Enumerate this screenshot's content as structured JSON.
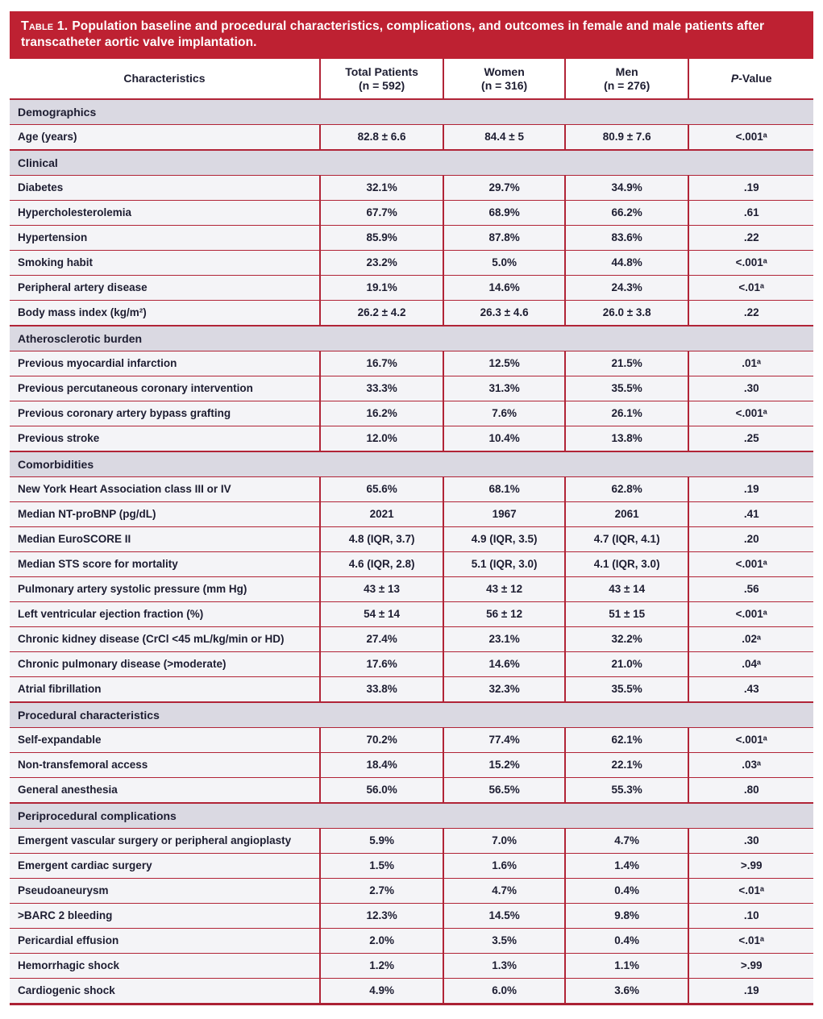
{
  "title": {
    "label": "Table 1.",
    "text": "Population baseline and procedural characteristics, complications, and outcomes in female and male patients after transcatheter aortic valve implantation."
  },
  "columns": [
    {
      "label": "Characteristics"
    },
    {
      "line1": "Total Patients",
      "line2": "(n = 592)"
    },
    {
      "line1": "Women",
      "line2": "(n = 316)"
    },
    {
      "line1": "Men",
      "line2": "(n = 276)"
    },
    {
      "line1": "P-Value",
      "line2": ""
    }
  ],
  "sections": [
    {
      "header": "Demographics",
      "rows": [
        {
          "label": "Age (years)",
          "values": [
            "82.8 ± 6.6",
            "84.4 ± 5",
            "80.9 ± 7.6",
            "<.001ᵃ"
          ]
        }
      ]
    },
    {
      "header": "Clinical",
      "rows": [
        {
          "label": "Diabetes",
          "values": [
            "32.1%",
            "29.7%",
            "34.9%",
            ".19"
          ]
        },
        {
          "label": "Hypercholesterolemia",
          "values": [
            "67.7%",
            "68.9%",
            "66.2%",
            ".61"
          ]
        },
        {
          "label": "Hypertension",
          "values": [
            "85.9%",
            "87.8%",
            "83.6%",
            ".22"
          ]
        },
        {
          "label": "Smoking habit",
          "values": [
            "23.2%",
            "5.0%",
            "44.8%",
            "<.001ᵃ"
          ]
        },
        {
          "label": "Peripheral artery disease",
          "values": [
            "19.1%",
            "14.6%",
            "24.3%",
            "<.01ᵃ"
          ]
        },
        {
          "label": "Body mass index (kg/m²)",
          "values": [
            "26.2 ± 4.2",
            "26.3 ± 4.6",
            "26.0 ± 3.8",
            ".22"
          ]
        }
      ]
    },
    {
      "header": "Atherosclerotic burden",
      "rows": [
        {
          "label": "Previous myocardial infarction",
          "values": [
            "16.7%",
            "12.5%",
            "21.5%",
            ".01ᵃ"
          ]
        },
        {
          "label": "Previous percutaneous coronary intervention",
          "values": [
            "33.3%",
            "31.3%",
            "35.5%",
            ".30"
          ]
        },
        {
          "label": "Previous coronary artery bypass grafting",
          "values": [
            "16.2%",
            "7.6%",
            "26.1%",
            "<.001ᵃ"
          ]
        },
        {
          "label": "Previous stroke",
          "values": [
            "12.0%",
            "10.4%",
            "13.8%",
            ".25"
          ]
        }
      ]
    },
    {
      "header": "Comorbidities",
      "rows": [
        {
          "label": "New York Heart Association class III or IV",
          "values": [
            "65.6%",
            "68.1%",
            "62.8%",
            ".19"
          ]
        },
        {
          "label": "Median NT-proBNP (pg/dL)",
          "values": [
            "2021",
            "1967",
            "2061",
            ".41"
          ]
        },
        {
          "label": "Median EuroSCORE II",
          "values": [
            "4.8 (IQR, 3.7)",
            "4.9 (IQR, 3.5)",
            "4.7 (IQR, 4.1)",
            ".20"
          ]
        },
        {
          "label": "Median STS score for mortality",
          "values": [
            "4.6 (IQR, 2.8)",
            "5.1 (IQR, 3.0)",
            "4.1 (IQR, 3.0)",
            "<.001ᵃ"
          ]
        },
        {
          "label": "Pulmonary artery systolic pressure (mm Hg)",
          "values": [
            "43 ± 13",
            "43 ± 12",
            "43 ± 14",
            ".56"
          ]
        },
        {
          "label": "Left ventricular ejection fraction (%)",
          "values": [
            "54 ± 14",
            "56 ± 12",
            "51 ± 15",
            "<.001ᵃ"
          ]
        },
        {
          "label": "Chronic kidney disease (CrCl <45 mL/kg/min or HD)",
          "values": [
            "27.4%",
            "23.1%",
            "32.2%",
            ".02ᵃ"
          ]
        },
        {
          "label": "Chronic pulmonary disease (>moderate)",
          "values": [
            "17.6%",
            "14.6%",
            "21.0%",
            ".04ᵃ"
          ]
        },
        {
          "label": "Atrial fibrillation",
          "values": [
            "33.8%",
            "32.3%",
            "35.5%",
            ".43"
          ]
        }
      ]
    },
    {
      "header": "Procedural characteristics",
      "rows": [
        {
          "label": "Self-expandable",
          "values": [
            "70.2%",
            "77.4%",
            "62.1%",
            "<.001ᵃ"
          ]
        },
        {
          "label": "Non-transfemoral access",
          "values": [
            "18.4%",
            "15.2%",
            "22.1%",
            ".03ᵃ"
          ]
        },
        {
          "label": "General anesthesia",
          "values": [
            "56.0%",
            "56.5%",
            "55.3%",
            ".80"
          ]
        }
      ]
    },
    {
      "header": "Periprocedural complications",
      "rows": [
        {
          "label": "Emergent vascular surgery or peripheral angioplasty",
          "values": [
            "5.9%",
            "7.0%",
            "4.7%",
            ".30"
          ]
        },
        {
          "label": "Emergent cardiac surgery",
          "values": [
            "1.5%",
            "1.6%",
            "1.4%",
            ">.99"
          ]
        },
        {
          "label": "Pseudoaneurysm",
          "values": [
            "2.7%",
            "4.7%",
            "0.4%",
            "<.01ᵃ"
          ]
        },
        {
          "label": ">BARC 2 bleeding",
          "values": [
            "12.3%",
            "14.5%",
            "9.8%",
            ".10"
          ]
        },
        {
          "label": "Pericardial effusion",
          "values": [
            "2.0%",
            "3.5%",
            "0.4%",
            "<.01ᵃ"
          ]
        },
        {
          "label": "Hemorrhagic shock",
          "values": [
            "1.2%",
            "1.3%",
            "1.1%",
            ">.99"
          ]
        },
        {
          "label": "Cardiogenic shock",
          "values": [
            "4.9%",
            "6.0%",
            "3.6%",
            ".19"
          ]
        }
      ]
    }
  ],
  "colors": {
    "accent_red": "#be2132",
    "border_red": "#b12437",
    "section_band": "#dad9e2",
    "row_background": "#f4f4f7",
    "text": "#1d1d31",
    "title_text": "#ffffff"
  }
}
